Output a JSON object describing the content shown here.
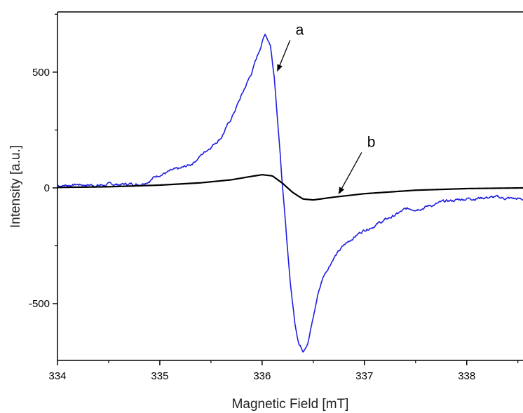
{
  "chart_data": {
    "type": "line",
    "title": "",
    "xlabel": "Magnetic Field [mT]",
    "ylabel": "Intensity [a.u.]",
    "xlim": [
      334,
      338.55
    ],
    "ylim": [
      -745,
      760
    ],
    "x_ticks": [
      334,
      335,
      336,
      337,
      338
    ],
    "y_ticks": [
      -500,
      0,
      500
    ],
    "grid": false,
    "legend": "none",
    "series": [
      {
        "name": "a",
        "color": "#1f1fe0",
        "noisy": true,
        "points": [
          [
            334.0,
            10
          ],
          [
            334.2,
            15
          ],
          [
            334.4,
            12
          ],
          [
            334.6,
            15
          ],
          [
            334.8,
            18
          ],
          [
            334.9,
            35
          ],
          [
            335.0,
            60
          ],
          [
            335.2,
            80
          ],
          [
            335.3,
            100
          ],
          [
            335.4,
            140
          ],
          [
            335.5,
            180
          ],
          [
            335.6,
            220
          ],
          [
            335.7,
            300
          ],
          [
            335.8,
            400
          ],
          [
            335.9,
            500
          ],
          [
            335.97,
            590
          ],
          [
            336.03,
            668
          ],
          [
            336.08,
            620
          ],
          [
            336.12,
            480
          ],
          [
            336.16,
            250
          ],
          [
            336.2,
            0
          ],
          [
            336.24,
            -220
          ],
          [
            336.28,
            -430
          ],
          [
            336.32,
            -580
          ],
          [
            336.36,
            -670
          ],
          [
            336.4,
            -700
          ],
          [
            336.45,
            -660
          ],
          [
            336.5,
            -560
          ],
          [
            336.55,
            -450
          ],
          [
            336.6,
            -380
          ],
          [
            336.7,
            -300
          ],
          [
            336.8,
            -250
          ],
          [
            336.9,
            -210
          ],
          [
            337.0,
            -180
          ],
          [
            337.2,
            -140
          ],
          [
            337.4,
            -95
          ],
          [
            337.6,
            -80
          ],
          [
            337.8,
            -60
          ],
          [
            338.0,
            -45
          ],
          [
            338.2,
            -40
          ],
          [
            338.4,
            -45
          ],
          [
            338.55,
            -50
          ]
        ]
      },
      {
        "name": "b",
        "color": "#000000",
        "noisy": false,
        "points": [
          [
            334.0,
            2
          ],
          [
            334.5,
            5
          ],
          [
            335.0,
            12
          ],
          [
            335.4,
            22
          ],
          [
            335.7,
            35
          ],
          [
            335.9,
            50
          ],
          [
            336.0,
            57
          ],
          [
            336.1,
            52
          ],
          [
            336.2,
            20
          ],
          [
            336.3,
            -20
          ],
          [
            336.4,
            -48
          ],
          [
            336.5,
            -52
          ],
          [
            336.7,
            -40
          ],
          [
            337.0,
            -25
          ],
          [
            337.5,
            -10
          ],
          [
            338.0,
            -3
          ],
          [
            338.55,
            0
          ]
        ]
      }
    ],
    "annotations": [
      {
        "label": "a",
        "text_x": 336.3,
        "text_y": 650,
        "arrow_from": [
          336.3,
          650
        ],
        "arrow_to": [
          336.15,
          505
        ]
      },
      {
        "label": "b",
        "text_x": 337.0,
        "text_y": 165,
        "arrow_from": [
          337.0,
          165
        ],
        "arrow_to": [
          336.75,
          -25
        ]
      }
    ]
  }
}
